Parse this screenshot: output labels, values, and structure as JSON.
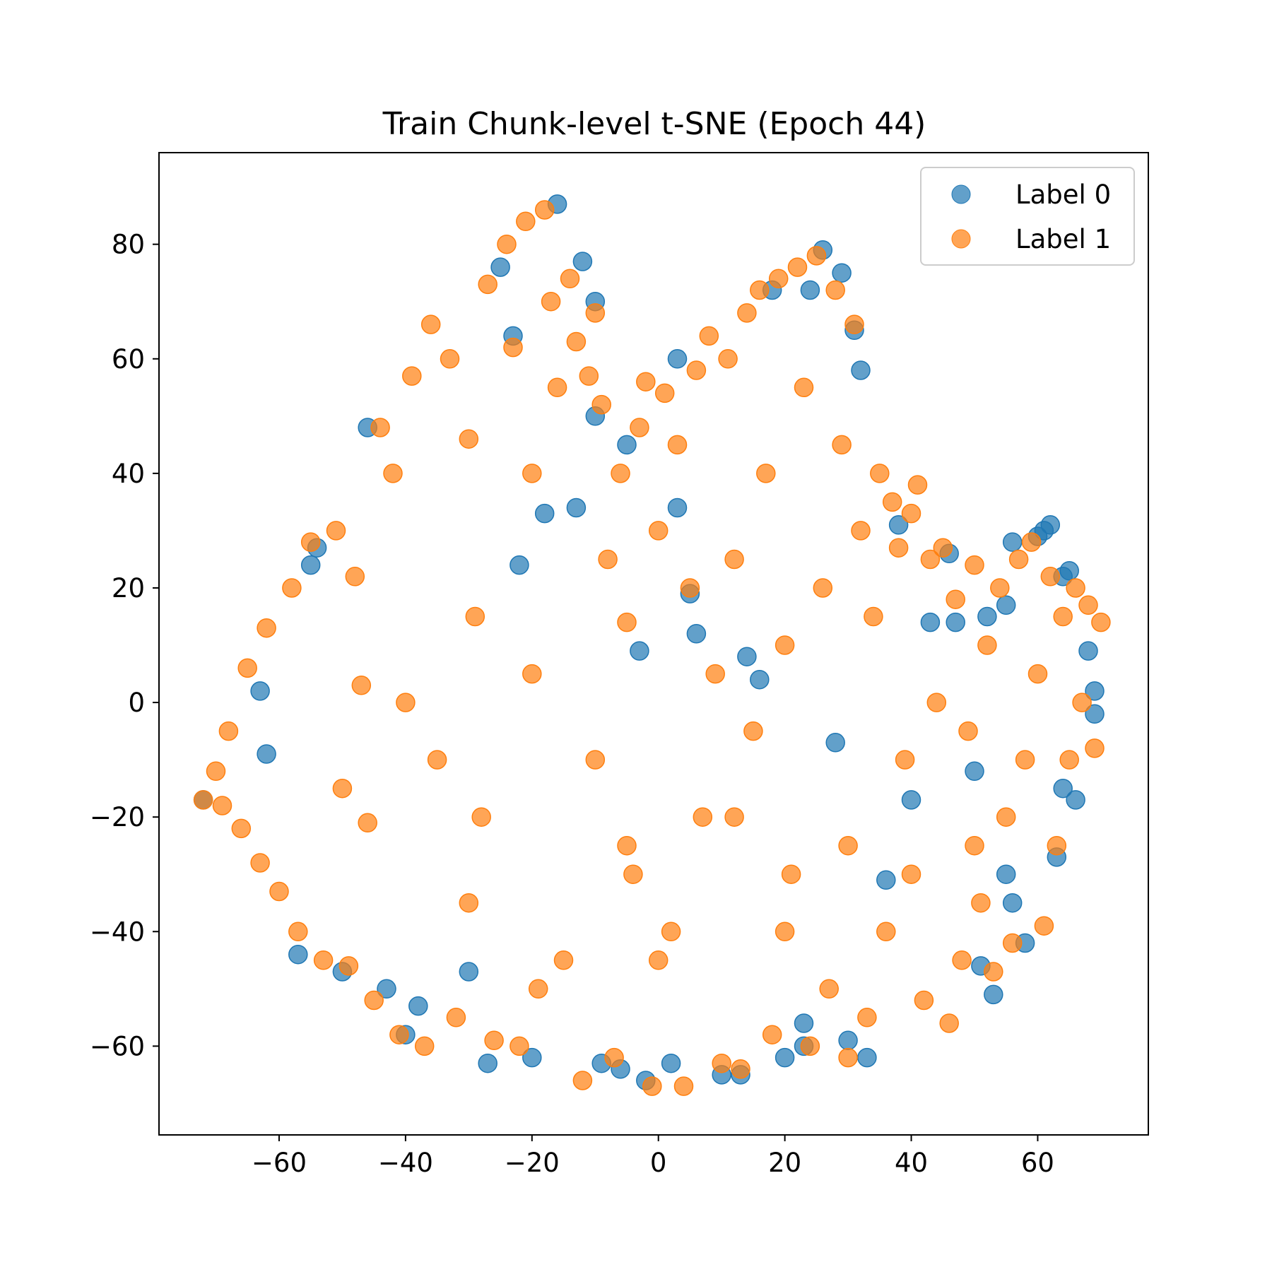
{
  "chart_data": {
    "type": "scatter",
    "title": "Train Chunk-level t-SNE (Epoch 44)",
    "xlabel": "",
    "ylabel": "",
    "xlim": [
      -79.0,
      77.5
    ],
    "ylim": [
      -75.5,
      96.0
    ],
    "x_ticks": [
      -60,
      -40,
      -20,
      0,
      20,
      40,
      60
    ],
    "y_ticks": [
      -60,
      -40,
      -20,
      0,
      20,
      40,
      60,
      80
    ],
    "x_tick_labels": [
      "−60",
      "−40",
      "−20",
      "0",
      "20",
      "40",
      "60"
    ],
    "y_tick_labels": [
      "−60",
      "−40",
      "−20",
      "0",
      "20",
      "40",
      "60",
      "80"
    ],
    "grid": false,
    "legend_position": "top-right",
    "series": [
      {
        "name": "Label 0",
        "color": "#1f77b4",
        "alpha": 0.7,
        "points": [
          [
            -72,
            -17
          ],
          [
            -63,
            2
          ],
          [
            -62,
            -9
          ],
          [
            -57,
            -44
          ],
          [
            -55,
            24
          ],
          [
            -54,
            27
          ],
          [
            -50,
            -47
          ],
          [
            -46,
            48
          ],
          [
            -43,
            -50
          ],
          [
            -40,
            -58
          ],
          [
            -38,
            -53
          ],
          [
            -30,
            -47
          ],
          [
            -27,
            -63
          ],
          [
            -25,
            76
          ],
          [
            -23,
            64
          ],
          [
            -22,
            24
          ],
          [
            -20,
            -62
          ],
          [
            -18,
            33
          ],
          [
            -16,
            87
          ],
          [
            -13,
            34
          ],
          [
            -12,
            77
          ],
          [
            -10,
            70
          ],
          [
            -10,
            50
          ],
          [
            -9,
            -63
          ],
          [
            -6,
            -64
          ],
          [
            -5,
            45
          ],
          [
            -3,
            9
          ],
          [
            -2,
            -66
          ],
          [
            2,
            -63
          ],
          [
            3,
            60
          ],
          [
            3,
            34
          ],
          [
            5,
            19
          ],
          [
            6,
            12
          ],
          [
            10,
            -65
          ],
          [
            13,
            -65
          ],
          [
            14,
            8
          ],
          [
            16,
            4
          ],
          [
            18,
            72
          ],
          [
            20,
            -62
          ],
          [
            23,
            -56
          ],
          [
            23,
            -60
          ],
          [
            24,
            72
          ],
          [
            26,
            79
          ],
          [
            28,
            -7
          ],
          [
            29,
            75
          ],
          [
            30,
            -59
          ],
          [
            31,
            65
          ],
          [
            32,
            58
          ],
          [
            33,
            -62
          ],
          [
            36,
            -31
          ],
          [
            38,
            31
          ],
          [
            40,
            -17
          ],
          [
            43,
            14
          ],
          [
            46,
            26
          ],
          [
            47,
            14
          ],
          [
            50,
            -12
          ],
          [
            51,
            -46
          ],
          [
            52,
            15
          ],
          [
            53,
            -51
          ],
          [
            55,
            17
          ],
          [
            55,
            -30
          ],
          [
            56,
            28
          ],
          [
            56,
            -35
          ],
          [
            58,
            -42
          ],
          [
            60,
            29
          ],
          [
            61,
            30
          ],
          [
            62,
            31
          ],
          [
            63,
            -27
          ],
          [
            64,
            -15
          ],
          [
            64,
            22
          ],
          [
            65,
            23
          ],
          [
            66,
            -17
          ],
          [
            68,
            9
          ],
          [
            69,
            -2
          ],
          [
            69,
            2
          ]
        ]
      },
      {
        "name": "Label 1",
        "color": "#ff7f0e",
        "alpha": 0.7,
        "points": [
          [
            -72,
            -17
          ],
          [
            -70,
            -12
          ],
          [
            -69,
            -18
          ],
          [
            -68,
            -5
          ],
          [
            -66,
            -22
          ],
          [
            -65,
            6
          ],
          [
            -63,
            -28
          ],
          [
            -62,
            13
          ],
          [
            -60,
            -33
          ],
          [
            -58,
            20
          ],
          [
            -57,
            -40
          ],
          [
            -55,
            28
          ],
          [
            -53,
            -45
          ],
          [
            -51,
            30
          ],
          [
            -49,
            -46
          ],
          [
            -48,
            22
          ],
          [
            -47,
            3
          ],
          [
            -46,
            -21
          ],
          [
            -45,
            -52
          ],
          [
            -44,
            48
          ],
          [
            -42,
            40
          ],
          [
            -41,
            -58
          ],
          [
            -39,
            57
          ],
          [
            -37,
            -60
          ],
          [
            -36,
            66
          ],
          [
            -35,
            -10
          ],
          [
            -33,
            60
          ],
          [
            -32,
            -55
          ],
          [
            -30,
            46
          ],
          [
            -29,
            15
          ],
          [
            -27,
            73
          ],
          [
            -26,
            -59
          ],
          [
            -24,
            80
          ],
          [
            -23,
            62
          ],
          [
            -22,
            -60
          ],
          [
            -21,
            84
          ],
          [
            -20,
            40
          ],
          [
            -19,
            -50
          ],
          [
            -18,
            86
          ],
          [
            -17,
            70
          ],
          [
            -16,
            55
          ],
          [
            -15,
            -45
          ],
          [
            -14,
            74
          ],
          [
            -13,
            63
          ],
          [
            -12,
            -66
          ],
          [
            -11,
            57
          ],
          [
            -10,
            68
          ],
          [
            -9,
            52
          ],
          [
            -8,
            25
          ],
          [
            -7,
            -62
          ],
          [
            -6,
            40
          ],
          [
            -5,
            14
          ],
          [
            -4,
            -30
          ],
          [
            -3,
            48
          ],
          [
            -2,
            56
          ],
          [
            -1,
            -67
          ],
          [
            0,
            30
          ],
          [
            1,
            54
          ],
          [
            2,
            -40
          ],
          [
            3,
            45
          ],
          [
            4,
            -67
          ],
          [
            5,
            20
          ],
          [
            6,
            58
          ],
          [
            7,
            -20
          ],
          [
            8,
            64
          ],
          [
            9,
            5
          ],
          [
            10,
            -63
          ],
          [
            11,
            60
          ],
          [
            12,
            25
          ],
          [
            13,
            -64
          ],
          [
            14,
            68
          ],
          [
            15,
            -5
          ],
          [
            16,
            72
          ],
          [
            17,
            40
          ],
          [
            18,
            -58
          ],
          [
            19,
            74
          ],
          [
            20,
            10
          ],
          [
            21,
            -30
          ],
          [
            22,
            76
          ],
          [
            23,
            55
          ],
          [
            24,
            -60
          ],
          [
            25,
            78
          ],
          [
            26,
            20
          ],
          [
            27,
            -50
          ],
          [
            28,
            72
          ],
          [
            29,
            45
          ],
          [
            30,
            -62
          ],
          [
            31,
            66
          ],
          [
            32,
            30
          ],
          [
            33,
            -55
          ],
          [
            34,
            15
          ],
          [
            35,
            40
          ],
          [
            36,
            -40
          ],
          [
            37,
            35
          ],
          [
            38,
            27
          ],
          [
            39,
            -10
          ],
          [
            40,
            33
          ],
          [
            41,
            38
          ],
          [
            42,
            -52
          ],
          [
            43,
            25
          ],
          [
            44,
            0
          ],
          [
            45,
            27
          ],
          [
            46,
            -56
          ],
          [
            47,
            18
          ],
          [
            48,
            -45
          ],
          [
            49,
            -5
          ],
          [
            50,
            24
          ],
          [
            51,
            -35
          ],
          [
            52,
            10
          ],
          [
            53,
            -47
          ],
          [
            54,
            20
          ],
          [
            55,
            -20
          ],
          [
            56,
            -42
          ],
          [
            57,
            25
          ],
          [
            58,
            -10
          ],
          [
            59,
            28
          ],
          [
            60,
            5
          ],
          [
            61,
            -39
          ],
          [
            62,
            22
          ],
          [
            63,
            -25
          ],
          [
            64,
            15
          ],
          [
            65,
            -10
          ],
          [
            66,
            20
          ],
          [
            67,
            0
          ],
          [
            68,
            17
          ],
          [
            69,
            -8
          ],
          [
            70,
            14
          ],
          [
            -28,
            -20
          ],
          [
            -10,
            -10
          ],
          [
            12,
            -20
          ],
          [
            30,
            -25
          ],
          [
            -40,
            0
          ],
          [
            -20,
            5
          ],
          [
            40,
            -30
          ],
          [
            0,
            -45
          ],
          [
            -50,
            -15
          ],
          [
            20,
            -40
          ],
          [
            -30,
            -35
          ],
          [
            50,
            -25
          ],
          [
            -5,
            -25
          ]
        ]
      }
    ]
  }
}
